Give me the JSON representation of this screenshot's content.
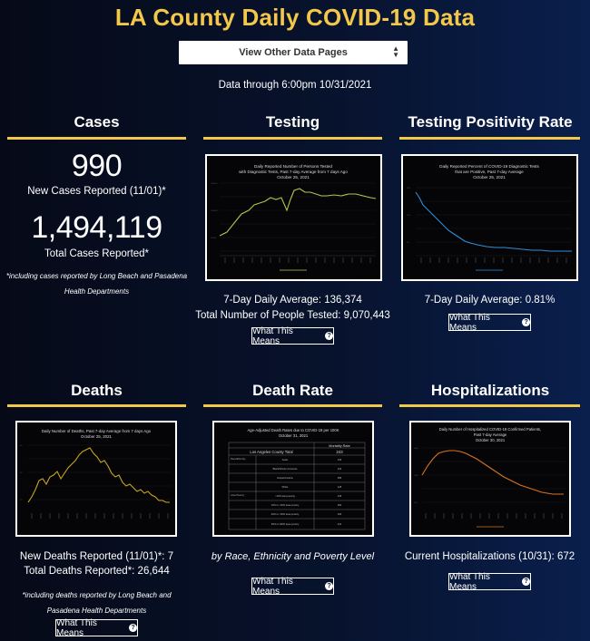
{
  "header": {
    "title": "LA County Daily COVID-19 Data",
    "selector_label": "View Other Data Pages",
    "data_through": "Data through 6:00pm 10/31/2021"
  },
  "cases": {
    "title": "Cases",
    "new_cases": "990",
    "new_cases_label": "New Cases Reported (11/01)*",
    "total_cases": "1,494,119",
    "total_cases_label": "Total Cases Reported*",
    "note_line1": "*including cases reported by Long Beach and Pasadena",
    "note_line2": "Health Departments"
  },
  "testing": {
    "title": "Testing",
    "chart_title_l1": "Daily Reported Number of Persons Tested",
    "chart_title_l2": "with Diagnostic Tests, Past 7-day Average from 7 days Ago",
    "chart_title_l3": "October 25, 2021",
    "daily_average": "7-Day Daily Average: 136,374",
    "total_tested": "Total Number of People Tested: 9,070,443",
    "button_label": "What This Means"
  },
  "positivity": {
    "title": "Testing Positivity Rate",
    "chart_title_l1": "Daily Reported Percent of COVID-19 Diagnostic Tests",
    "chart_title_l2": "that are Positive, Past 7-day Average",
    "chart_title_l3": "October 25, 2021",
    "daily_average": "7-Day Daily Average: 0.81%",
    "button_label": "What This Means"
  },
  "deaths": {
    "title": "Deaths",
    "chart_title_l1": "Daily Number of Deaths, Past 7-day Average from 7 days Ago",
    "chart_title_l2": "October 25, 2021",
    "new_deaths": "New Deaths Reported (11/01)*: 7",
    "total_deaths": "Total Deaths Reported*: 26,644",
    "note_line1": "*including deaths reported by Long Beach and",
    "note_line2": "Pasadena Health Departments",
    "button_label": "What This Means"
  },
  "death_rate": {
    "title": "Death Rate",
    "chart_title_l1": "Age-Adjusted Death Rates due to COVID-19 per 100K",
    "chart_title_l2": "October 31, 2021",
    "table_header": "Mortality Rate",
    "county_label": "Los Angeles County Total",
    "county_value": "243",
    "race_group_label": "Race/Ethnicity",
    "poverty_group_label": "Area Poverty",
    "rows": [
      {
        "label": "Asian",
        "value": "169"
      },
      {
        "label": "Black/African American",
        "value": "244"
      },
      {
        "label": "Hispanic/Latino",
        "value": "389"
      },
      {
        "label": "White",
        "value": "128"
      },
      {
        "label": "<10% area poverty",
        "value": "139"
      },
      {
        "label": "10% to <20% area poverty",
        "value": "250"
      },
      {
        "label": "20% to <30% area poverty",
        "value": "330"
      },
      {
        "label": "30% to 100% area poverty",
        "value": "441"
      }
    ],
    "subtitle": "by Race, Ethnicity and Poverty Level",
    "button_label": "What This Means"
  },
  "hospitalizations": {
    "title": "Hospitalizations",
    "chart_title_l1": "Daily Number of Hospitalized COVID-19 Confirmed Patients,",
    "chart_title_l2": "Past 7-day Average",
    "chart_title_l3": "October 30, 2021",
    "current": "Current Hospitalizations (10/31): 672",
    "button_label": "What This Means"
  },
  "colors": {
    "accent": "#f3c74a",
    "testing_line": "#b8c24a",
    "positivity_line": "#2f8fd6",
    "deaths_line": "#c9a61e",
    "hosp_line": "#d9731e"
  }
}
